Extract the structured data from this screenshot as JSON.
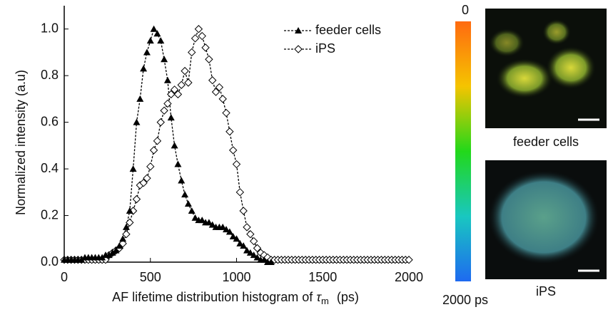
{
  "chart_data": {
    "type": "line",
    "ylabel": "Normalized intensity (a.u)",
    "xlabel": [
      "AF lifetime distribution histogram of",
      "τ",
      "m",
      "(ps)"
    ],
    "x": [
      0,
      20,
      40,
      60,
      80,
      100,
      120,
      140,
      160,
      180,
      200,
      220,
      240,
      260,
      280,
      300,
      320,
      340,
      360,
      380,
      400,
      420,
      440,
      460,
      480,
      500,
      520,
      540,
      560,
      580,
      600,
      620,
      640,
      660,
      680,
      700,
      720,
      740,
      760,
      780,
      800,
      820,
      840,
      860,
      880,
      900,
      920,
      940,
      960,
      980,
      1000,
      1020,
      1040,
      1060,
      1080,
      1100,
      1120,
      1140,
      1160,
      1180,
      1200,
      1220,
      1240,
      1260,
      1280,
      1300,
      1320,
      1340,
      1360,
      1380,
      1400,
      1420,
      1440,
      1460,
      1480,
      1500,
      1520,
      1540,
      1560,
      1580,
      1600,
      1620,
      1640,
      1660,
      1680,
      1700,
      1720,
      1740,
      1760,
      1780,
      1800,
      1820,
      1840,
      1860,
      1880,
      1900,
      1920,
      1940,
      1960,
      1980,
      2000
    ],
    "series": [
      {
        "name": "feeder cells",
        "color": "#000000",
        "marker": "triangle",
        "values": [
          0.01,
          0.01,
          0.01,
          0.01,
          0.01,
          0.01,
          0.02,
          0.02,
          0.02,
          0.02,
          0.02,
          0.02,
          0.03,
          0.03,
          0.04,
          0.05,
          0.07,
          0.1,
          0.15,
          0.22,
          0.4,
          0.6,
          0.7,
          0.83,
          0.9,
          0.95,
          1.0,
          0.98,
          0.95,
          0.87,
          0.78,
          0.62,
          0.5,
          0.42,
          0.35,
          0.29,
          0.25,
          0.22,
          0.19,
          0.18,
          0.18,
          0.17,
          0.17,
          0.16,
          0.15,
          0.15,
          0.15,
          0.14,
          0.13,
          0.11,
          0.1,
          0.08,
          0.07,
          0.05,
          0.04,
          0.03,
          0.02,
          0.01,
          0.01,
          0.0,
          0.0,
          null,
          null,
          null,
          null,
          null,
          null,
          null,
          null,
          null,
          null,
          null,
          null,
          null,
          null,
          null,
          null,
          null,
          null,
          null,
          null,
          null,
          null,
          null,
          null,
          null,
          null,
          null,
          null,
          null,
          null,
          null,
          null,
          null,
          null,
          null,
          null,
          null,
          null,
          null,
          null
        ]
      },
      {
        "name": "iPS",
        "color": "#000000",
        "marker": "diamond",
        "values": [
          0.01,
          0.01,
          0.01,
          0.01,
          0.01,
          0.01,
          0.01,
          0.01,
          0.01,
          0.01,
          0.01,
          0.01,
          0.01,
          0.03,
          0.04,
          0.05,
          0.06,
          0.08,
          0.12,
          0.17,
          0.22,
          0.27,
          0.33,
          0.34,
          0.36,
          0.41,
          0.48,
          0.52,
          0.6,
          0.65,
          0.68,
          0.72,
          0.74,
          0.72,
          0.76,
          0.82,
          0.77,
          0.9,
          0.96,
          1.0,
          0.97,
          0.92,
          0.87,
          0.78,
          0.73,
          0.75,
          0.7,
          0.64,
          0.56,
          0.48,
          0.42,
          0.3,
          0.22,
          0.15,
          0.12,
          0.09,
          0.06,
          0.04,
          0.03,
          0.02,
          0.01,
          0.01,
          0.01,
          0.01,
          0.01,
          0.01,
          0.01,
          0.01,
          0.01,
          0.01,
          0.01,
          0.01,
          0.01,
          0.01,
          0.01,
          0.01,
          0.01,
          0.01,
          0.01,
          0.01,
          0.01,
          0.01,
          0.01,
          0.01,
          0.01,
          0.01,
          0.01,
          0.01,
          0.01,
          0.01,
          0.01,
          0.01,
          0.01,
          0.01,
          0.01,
          0.01,
          0.01,
          0.01,
          0.01,
          0.01,
          0.01
        ]
      }
    ],
    "xlim": [
      0,
      2000
    ],
    "xticks": [
      0,
      500,
      1000,
      1500,
      2000
    ],
    "ylim": [
      0,
      1.1
    ],
    "yticks": [
      {
        "value": 0,
        "label": "0.0"
      },
      0.2,
      0.4,
      0.6,
      0.8,
      {
        "value": 1,
        "label": "1.0"
      }
    ],
    "legend": "top-right",
    "colorbar": {
      "ticks": [
        0,
        {
          "value": 2000,
          "label": "2000 ps"
        }
      ]
    },
    "image_captions": [
      "feeder cells",
      "iPS"
    ]
  }
}
